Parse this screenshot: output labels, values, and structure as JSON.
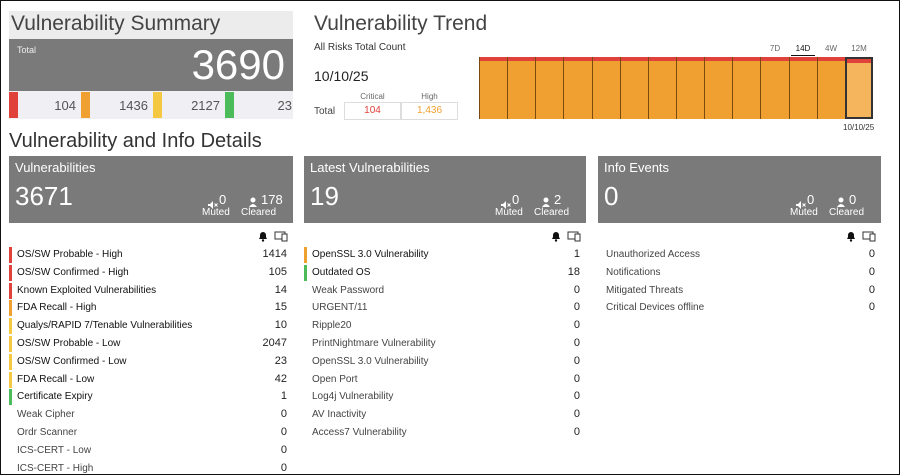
{
  "summary": {
    "title": "Vulnerability Summary",
    "total_label": "Total",
    "total": "3690",
    "counts": [
      {
        "value": "104",
        "color": "#e0413a"
      },
      {
        "value": "1436",
        "color": "#f0a030"
      },
      {
        "value": "2127",
        "color": "#f5c842"
      },
      {
        "value": "23",
        "color": "#4cbb5a"
      }
    ]
  },
  "trend": {
    "title": "Vulnerability Trend",
    "subtitle": "All Risks Total Count",
    "date": "10/10/25",
    "table": {
      "headers": [
        "Critical",
        "High"
      ],
      "row_label": "Total",
      "values": [
        "104",
        "1,436"
      ],
      "colors": [
        "#e0413a",
        "#f0a030"
      ]
    },
    "ranges": [
      "7D",
      "14D",
      "4W",
      "12M"
    ],
    "selected_range": 1,
    "bar_date": "10/10/25"
  },
  "details_title": "Vulnerability and Info Details",
  "panels": [
    {
      "title": "Vulnerabilities",
      "count": "3671",
      "muted": "0",
      "muted_label": "Muted",
      "cleared": "178",
      "cleared_label": "Cleared",
      "items": [
        {
          "label": "OS/SW Probable - High",
          "value": "1414",
          "color": "#e0413a"
        },
        {
          "label": "OS/SW Confirmed - High",
          "value": "105",
          "color": "#e0413a"
        },
        {
          "label": "Known Exploited Vulnerabilities",
          "value": "14",
          "color": "#e0413a"
        },
        {
          "label": "FDA Recall - High",
          "value": "15",
          "color": "#f0a030"
        },
        {
          "label": "Qualys/RAPID 7/Tenable Vulnerabilities",
          "value": "10",
          "color": "#f5c842"
        },
        {
          "label": "OS/SW Probable - Low",
          "value": "2047",
          "color": "#f5c842"
        },
        {
          "label": "OS/SW Confirmed - Low",
          "value": "23",
          "color": "#f5c842"
        },
        {
          "label": "FDA Recall - Low",
          "value": "42",
          "color": "#f5c842"
        },
        {
          "label": "Certificate Expiry",
          "value": "1",
          "color": "#4cbb5a"
        },
        {
          "label": "Weak Cipher",
          "value": "0"
        },
        {
          "label": "Ordr Scanner",
          "value": "0"
        },
        {
          "label": "ICS-CERT - Low",
          "value": "0"
        },
        {
          "label": "ICS-CERT - High",
          "value": "0"
        }
      ]
    },
    {
      "title": "Latest Vulnerabilities",
      "count": "19",
      "muted": "0",
      "muted_label": "Muted",
      "cleared": "2",
      "cleared_label": "Cleared",
      "items": [
        {
          "label": "OpenSSL 3.0 Vulnerability",
          "value": "1",
          "color": "#f0a030"
        },
        {
          "label": "Outdated OS",
          "value": "18",
          "color": "#4cbb5a"
        },
        {
          "label": "Weak Password",
          "value": "0"
        },
        {
          "label": "URGENT/11",
          "value": "0"
        },
        {
          "label": "Ripple20",
          "value": "0"
        },
        {
          "label": "PrintNightmare Vulnerability",
          "value": "0"
        },
        {
          "label": "OpenSSL 3.0 Vulnerability",
          "value": "0"
        },
        {
          "label": "Open Port",
          "value": "0"
        },
        {
          "label": "Log4j Vulnerability",
          "value": "0"
        },
        {
          "label": "AV Inactivity",
          "value": "0"
        },
        {
          "label": "Access7 Vulnerability",
          "value": "0"
        }
      ]
    },
    {
      "title": "Info Events",
      "count": "0",
      "muted": "0",
      "muted_label": "Muted",
      "cleared": "0",
      "cleared_label": "Cleared",
      "items": [
        {
          "label": "Unauthorized Access",
          "value": "0"
        },
        {
          "label": "Notifications",
          "value": "0"
        },
        {
          "label": "Mitigated Threats",
          "value": "0"
        },
        {
          "label": "Critical Devices offline",
          "value": "0"
        }
      ]
    }
  ]
}
